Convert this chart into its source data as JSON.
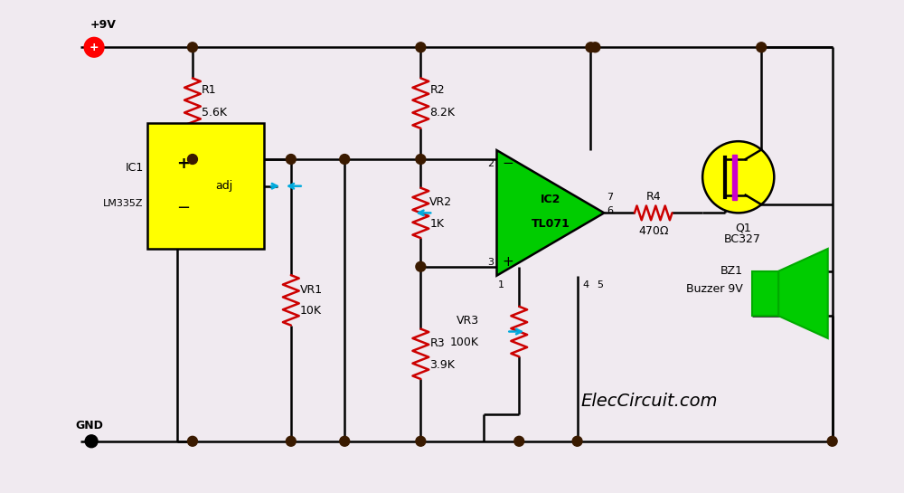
{
  "bg_color": "#f0eaf0",
  "wire_color": "#000000",
  "resistor_color": "#cc0000",
  "node_color": "#3a1a00",
  "supply_label": "+9V",
  "gnd_label": "GND",
  "ic1_label1": "IC1",
  "ic1_label2": "LM335Z",
  "ic1_plus": "+",
  "ic1_minus": "−",
  "ic1_adj": "adj",
  "ic2_label1": "IC2",
  "ic2_label2": "TL071",
  "r1_label1": "R1",
  "r1_label2": "5.6K",
  "r2_label1": "R2",
  "r2_label2": "8.2K",
  "r3_label1": "R3",
  "r3_label2": "3.9K",
  "r4_label1": "R4",
  "r4_label2": "470Ω",
  "vr1_label1": "VR1",
  "vr1_label2": "10K",
  "vr2_label1": "VR2",
  "vr2_label2": "1K",
  "vr3_label1": "VR3",
  "vr3_label2": "100K",
  "q1_label1": "Q1",
  "q1_label2": "BC327",
  "bz1_label1": "BZ1",
  "bz1_label2": "Buzzer 9V",
  "title_text": "ElecCircuit.com",
  "title_fontsize": 14,
  "op_minus": "−",
  "op_plus": "+"
}
